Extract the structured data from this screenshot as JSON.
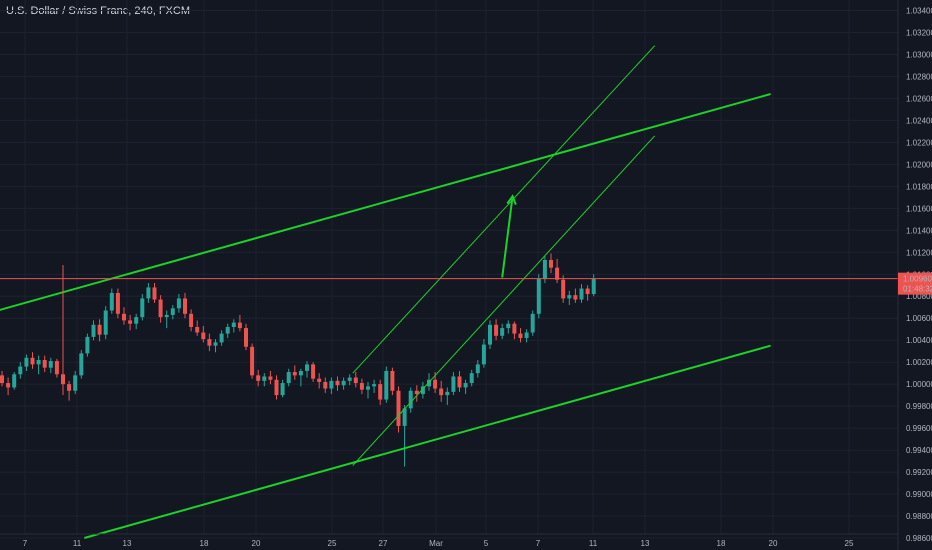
{
  "header": {
    "title": "U.S. Dollar / Swiss Franc, 240, FXCM"
  },
  "colors": {
    "background": "#131722",
    "grid": "#1e2230",
    "up": "#26a69a",
    "down": "#ef5350",
    "trendline": "#1cd128",
    "price_line": "#ef5350",
    "price_label_bg": "#ef5350",
    "axis_text": "#b2b5be"
  },
  "price_label": {
    "price": "1.00960",
    "countdown": "01:48:32"
  },
  "chart_data": {
    "type": "candlestick",
    "title": "U.S. Dollar / Swiss Franc, 240, FXCM",
    "y_axis": {
      "range": [
        0.985,
        1.0345
      ],
      "ticks": [
        "1.03400",
        "1.03200",
        "1.03000",
        "1.02800",
        "1.02600",
        "1.02400",
        "1.02200",
        "1.02000",
        "1.01800",
        "1.01600",
        "1.01400",
        "1.01200",
        "1.01000",
        "1.00800",
        "1.00600",
        "1.00400",
        "1.00200",
        "1.00000",
        "0.99800",
        "0.99600",
        "0.99400",
        "0.99200",
        "0.99000",
        "0.98800",
        "0.98600"
      ]
    },
    "x_axis": {
      "ticks": [
        "7",
        "11",
        "13",
        "18",
        "20",
        "25",
        "27",
        "Mar",
        "5",
        "7",
        "11",
        "13",
        "18",
        "20",
        "25"
      ]
    },
    "current_price": 1.0096,
    "candles_ohlc": [
      [
        1.0008,
        1.0012,
        0.9998,
        1.0001
      ],
      [
        1.0001,
        1.0006,
        0.999,
        0.9997
      ],
      [
        0.9997,
        1.0011,
        0.9995,
        1.0009
      ],
      [
        1.0009,
        1.002,
        1.0005,
        1.0016
      ],
      [
        1.0016,
        1.0027,
        1.0012,
        1.0024
      ],
      [
        1.0024,
        1.0029,
        1.0014,
        1.0018
      ],
      [
        1.0018,
        1.0026,
        1.0009,
        1.0022
      ],
      [
        1.0022,
        1.0026,
        1.0011,
        1.0015
      ],
      [
        1.0015,
        1.0024,
        1.001,
        1.0021
      ],
      [
        1.0021,
        1.0023,
        1.0006,
        1.0009
      ],
      [
        1.0009,
        1.0013,
        0.9996,
        1.0
      ],
      [
        1.0,
        1.0003,
        0.9985,
        0.9994
      ],
      [
        0.9994,
        1.0012,
        0.9991,
        1.0008
      ],
      [
        1.0008,
        1.0031,
        1.0005,
        1.0028
      ],
      [
        1.0028,
        1.0046,
        1.0025,
        1.0043
      ],
      [
        1.0043,
        1.0058,
        1.004,
        1.0054
      ],
      [
        1.0054,
        1.0059,
        1.0039,
        1.0045
      ],
      [
        1.0045,
        1.0071,
        1.0041,
        1.0067
      ],
      [
        1.0067,
        1.0087,
        1.0064,
        1.0083
      ],
      [
        1.0083,
        1.0087,
        1.006,
        1.0064
      ],
      [
        1.0064,
        1.007,
        1.0054,
        1.0058
      ],
      [
        1.0058,
        1.0063,
        1.0049,
        1.0055
      ],
      [
        1.0055,
        1.0064,
        1.005,
        1.0061
      ],
      [
        1.0061,
        1.0082,
        1.0058,
        1.0078
      ],
      [
        1.0078,
        1.0092,
        1.0074,
        1.0088
      ],
      [
        1.0088,
        1.0092,
        1.0074,
        1.0077
      ],
      [
        1.0077,
        1.0081,
        1.0056,
        1.0061
      ],
      [
        1.0061,
        1.0067,
        1.0051,
        1.0063
      ],
      [
        1.0063,
        1.0072,
        1.0059,
        1.0069
      ],
      [
        1.0069,
        1.0082,
        1.0065,
        1.0078
      ],
      [
        1.0078,
        1.0083,
        1.006,
        1.0064
      ],
      [
        1.0064,
        1.0068,
        1.0048,
        1.0052
      ],
      [
        1.0052,
        1.0058,
        1.0044,
        1.0047
      ],
      [
        1.0047,
        1.0053,
        1.0038,
        1.0041
      ],
      [
        1.0041,
        1.0046,
        1.003,
        1.0035
      ],
      [
        1.0035,
        1.0041,
        1.0029,
        1.0038
      ],
      [
        1.0038,
        1.0049,
        1.0035,
        1.0046
      ],
      [
        1.0046,
        1.0055,
        1.0042,
        1.0052
      ],
      [
        1.0052,
        1.0059,
        1.0047,
        1.0056
      ],
      [
        1.0056,
        1.0063,
        1.0048,
        1.0051
      ],
      [
        1.0051,
        1.0055,
        1.0031,
        1.0034
      ],
      [
        1.0034,
        1.0037,
        1.0005,
        1.0008
      ],
      [
        1.0008,
        1.0013,
        0.9998,
        1.0003
      ],
      [
        1.0003,
        1.001,
        0.9998,
        1.0007
      ],
      [
        1.0007,
        1.0012,
        1.0,
        1.0004
      ],
      [
        1.0004,
        1.0008,
        0.9986,
        0.999
      ],
      [
        0.999,
        1.0004,
        0.9988,
        1.0001
      ],
      [
        1.0001,
        1.0014,
        0.9998,
        1.0011
      ],
      [
        1.0011,
        1.0017,
        1.0004,
        1.0008
      ],
      [
        1.0008,
        1.0014,
        0.9998,
        1.0012
      ],
      [
        1.0012,
        1.0021,
        1.0006,
        1.0018
      ],
      [
        1.0018,
        1.002,
        1.0002,
        1.0005
      ],
      [
        1.0005,
        1.001,
        0.9996,
        1.0002
      ],
      [
        1.0002,
        1.0006,
        0.9992,
        0.9996
      ],
      [
        0.9996,
        1.0006,
        0.9991,
        1.0003
      ],
      [
        1.0003,
        1.0007,
        0.9994,
        0.9999
      ],
      [
        0.9999,
        1.0006,
        0.9995,
        1.0003
      ],
      [
        1.0003,
        1.0009,
        0.9999,
        1.0006
      ],
      [
        1.0006,
        1.0011,
        0.9997,
        1.0001
      ],
      [
        1.0001,
        1.0005,
        0.9991,
        0.9995
      ],
      [
        0.9995,
        1.0002,
        0.9987,
        0.9998
      ],
      [
        0.9998,
        1.0004,
        0.9992,
        1.0
      ],
      [
        1.0,
        1.0004,
        0.9981,
        0.9986
      ],
      [
        0.9986,
        1.0016,
        0.9983,
        1.0012
      ],
      [
        1.0012,
        1.0015,
        0.999,
        0.9994
      ],
      [
        0.9994,
        0.9998,
        0.9956,
        0.9962
      ],
      [
        0.9962,
        0.9981,
        0.9925,
        0.9978
      ],
      [
        0.9978,
        0.9997,
        0.9974,
        0.9994
      ],
      [
        0.9994,
        0.9999,
        0.9984,
        0.9991
      ],
      [
        0.9991,
        1.0002,
        0.9987,
        0.9998
      ],
      [
        0.9998,
        1.001,
        0.9994,
        1.0004
      ],
      [
        1.0004,
        1.0011,
        0.9992,
        0.9996
      ],
      [
        0.9996,
        1.0003,
        0.9984,
        0.999
      ],
      [
        0.999,
        0.9997,
        0.9981,
        0.9993
      ],
      [
        0.9993,
        1.0011,
        0.999,
        1.0007
      ],
      [
        1.0007,
        1.0012,
        0.9993,
        0.9997
      ],
      [
        0.9997,
        1.0004,
        0.9991,
        1.0001
      ],
      [
        1.0001,
        1.0013,
        0.9998,
        1.001
      ],
      [
        1.001,
        1.0022,
        1.0006,
        1.0018
      ],
      [
        1.0018,
        1.0041,
        1.0015,
        1.0036
      ],
      [
        1.0036,
        1.0058,
        1.0032,
        1.0054
      ],
      [
        1.0054,
        1.0059,
        1.004,
        1.0044
      ],
      [
        1.0044,
        1.0055,
        1.0041,
        1.0051
      ],
      [
        1.0051,
        1.0058,
        1.0046,
        1.0055
      ],
      [
        1.0055,
        1.0057,
        1.0041,
        1.0046
      ],
      [
        1.0046,
        1.0051,
        1.0038,
        1.0042
      ],
      [
        1.0042,
        1.005,
        1.0038,
        1.0047
      ],
      [
        1.0047,
        1.0067,
        1.0044,
        1.0064
      ],
      [
        1.0064,
        1.01,
        1.006,
        1.0096
      ],
      [
        1.0096,
        1.0117,
        1.0092,
        1.0113
      ],
      [
        1.0113,
        1.0119,
        1.0101,
        1.0106
      ],
      [
        1.0106,
        1.0114,
        1.0092,
        1.0095
      ],
      [
        1.0095,
        1.0099,
        1.0074,
        1.0078
      ],
      [
        1.0078,
        1.0085,
        1.0072,
        1.0081
      ],
      [
        1.0081,
        1.0087,
        1.0074,
        1.0077
      ],
      [
        1.0077,
        1.0091,
        1.0074,
        1.0087
      ],
      [
        1.0087,
        1.009,
        1.0076,
        1.0082
      ],
      [
        1.0082,
        1.01,
        1.008,
        1.0096
      ]
    ],
    "drawings": {
      "upper_trendline": {
        "p1": [
          -2,
          1.0065
        ],
        "p2": [
          126,
          1.0264
        ]
      },
      "lower_trendline": {
        "p1": [
          13.5,
          0.986
        ],
        "p2": [
          126,
          1.0035
        ]
      },
      "channel_upper": {
        "p1": [
          57.5,
          1.001
        ],
        "p2": [
          107,
          1.0308
        ]
      },
      "channel_lower": {
        "p1": [
          57.5,
          0.9926
        ],
        "p2": [
          107,
          1.0226
        ]
      },
      "arrow": {
        "from": [
          82,
          1.0097
        ],
        "to": [
          83.7,
          1.0171
        ]
      },
      "vertical_line_index": 10
    }
  }
}
